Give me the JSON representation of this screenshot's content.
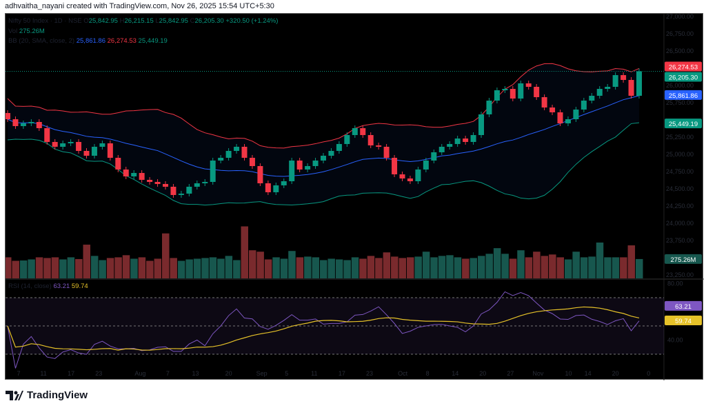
{
  "caption": "adhvaitha_nayani created with TradingView.com, Nov 26, 2025 15:54 UTC+5:30",
  "legend": {
    "symbol": "Nifty 50 Index · 1D · NSE",
    "o_label": "O",
    "open": "25,842.95",
    "h_label": "H",
    "high": "26,215.15",
    "l_label": "L",
    "low": "25,842.95",
    "c_label": "C",
    "close": "26,205.30",
    "change": "+320.50 (+1.24%)",
    "vol_label": "Vol",
    "vol": "275.26M",
    "bb_label": "BB (20, SMA, close, 2)",
    "bb_basis": "25,861.86",
    "bb_upper": "26,274.53",
    "bb_lower": "25,449.19",
    "rsi_label": "RSI (14, close)",
    "rsi": "63.21",
    "rsi_ma": "59.74"
  },
  "footer": {
    "brand": "TradingView"
  },
  "colors": {
    "up": "#089981",
    "down": "#f23645",
    "basis": "#2962ff",
    "rsi": "#7e57c2",
    "rsi_ma": "#e6c229"
  },
  "chart_data": {
    "type": "candlestick",
    "price_ticks": [
      "27,000.00",
      "26,750.00",
      "26,500.00",
      "26,000.00",
      "25,750.00",
      "25,250.00",
      "25,000.00",
      "24,750.00",
      "24,500.00",
      "24,250.00",
      "24,000.00",
      "23,750.00",
      "23,250.00"
    ],
    "price_tick_values": [
      27000,
      26750,
      26500,
      26000,
      25750,
      25250,
      25000,
      24750,
      24500,
      24250,
      24000,
      23750,
      23250
    ],
    "rsi_ticks": [
      "80.00",
      "40.00"
    ],
    "x_ticks": [
      "7",
      "11",
      "17",
      "23",
      "Aug",
      "7",
      "13",
      "20",
      "Sep",
      "5",
      "11",
      "17",
      "23",
      "Oct",
      "8",
      "14",
      "20",
      "27",
      "Nov",
      "10",
      "14",
      "20",
      "0"
    ],
    "x_tick_index": [
      2,
      6.5,
      11.5,
      16.5,
      24,
      29,
      34,
      40,
      46,
      50.5,
      55.5,
      60.5,
      65.5,
      71.5,
      76,
      81,
      86,
      91,
      96,
      101.5,
      105,
      110,
      116
    ],
    "price_labels": [
      {
        "text": "26,274.53",
        "value": 26274.53,
        "color": "#f23645"
      },
      {
        "text": "26,205.30",
        "value": 26205.3,
        "color": "#089981"
      },
      {
        "text": "25,861.86",
        "value": 25861.86,
        "color": "#2962ff"
      },
      {
        "text": "25,449.19",
        "value": 25449.19,
        "color": "#089981"
      }
    ],
    "first_open": 25600,
    "closes": [
      25510,
      25410,
      25450,
      25470,
      25380,
      25180,
      25110,
      25160,
      25180,
      25050,
      24980,
      25110,
      25160,
      24950,
      24780,
      24680,
      24730,
      24630,
      24600,
      24570,
      24530,
      24410,
      24430,
      24530,
      24580,
      24600,
      24910,
      24950,
      25050,
      25110,
      24950,
      24830,
      24580,
      24450,
      24550,
      24610,
      24910,
      24780,
      24830,
      24910,
      24980,
      25050,
      25150,
      25280,
      25380,
      25280,
      25130,
      25110,
      24950,
      24710,
      24650,
      24610,
      24780,
      24910,
      25030,
      25110,
      25150,
      25230,
      25180,
      25280,
      25580,
      25780,
      25930,
      25950,
      25810,
      26030,
      25980,
      25830,
      25680,
      25610,
      25450,
      25510,
      25650,
      25780,
      25850,
      25950,
      25980,
      26150,
      26080,
      25850,
      26205.3
    ],
    "volumes_m": [
      300,
      250,
      255,
      270,
      300,
      290,
      300,
      270,
      300,
      275,
      480,
      320,
      260,
      290,
      300,
      330,
      280,
      300,
      250,
      280,
      640,
      290,
      250,
      270,
      280,
      290,
      300,
      280,
      320,
      260,
      740,
      400,
      380,
      270,
      300,
      280,
      390,
      300,
      310,
      300,
      260,
      280,
      270,
      260,
      300,
      280,
      320,
      290,
      370,
      310,
      290,
      300,
      310,
      380,
      300,
      320,
      330,
      300,
      280,
      290,
      320,
      350,
      430,
      350,
      280,
      400,
      300,
      380,
      320,
      340,
      300,
      270,
      380,
      300,
      310,
      510,
      300,
      300,
      300,
      470,
      275.26
    ]
  }
}
